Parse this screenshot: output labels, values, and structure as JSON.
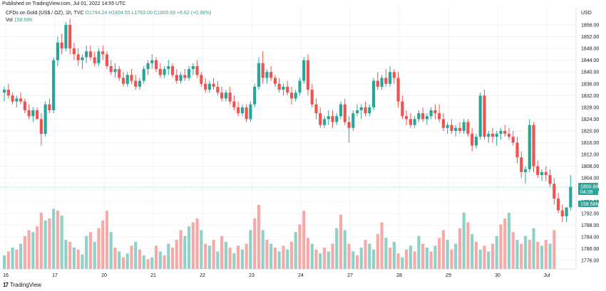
{
  "header": {
    "published": "Published on TradingView.com, Jul 01, 2022 14:55 UTC"
  },
  "legend": {
    "symbol": "CFDs on Gold (US$ / OZ), 1h, TVC",
    "open": "O1794.24",
    "high": "H1804.55",
    "low": "L1793.00",
    "close": "C1800.69",
    "change": "+6.62 (+0.38%)",
    "vol_label": "Vol",
    "vol_value": "158.58K"
  },
  "axis": {
    "currency": "USD",
    "y_ticks": [
      "1856.00",
      "1852.00",
      "1848.00",
      "1844.00",
      "1840.00",
      "1836.00",
      "1832.00",
      "1828.00",
      "1824.00",
      "1820.00",
      "1816.00",
      "1812.00",
      "1808.00",
      "1804.00",
      "1800.00",
      "1796.00",
      "1792.00",
      "1788.00",
      "1784.00",
      "1780.00",
      "1776.00"
    ],
    "x_ticks": [
      "16",
      "17",
      "20",
      "21",
      "22",
      "23",
      "24",
      "27",
      "28",
      "29",
      "30",
      "Jul"
    ]
  },
  "price_tag": {
    "price": "1800.88",
    "countdown": "04:39",
    "volume": "158.58K"
  },
  "footer": {
    "brand": "TradingView"
  },
  "colors": {
    "up": "#26a69a",
    "down": "#ef5350",
    "up_volume": "#8fd0c8",
    "down_volume": "#f7a9a7",
    "grid": "#f0f3fa",
    "price_line": "#26a69a"
  },
  "chart_data": {
    "type": "candlestick",
    "title": "CFDs on Gold (US$ / OZ), 1h, TVC",
    "ylabel": "USD",
    "ylim": [
      1774,
      1858
    ],
    "x_categories": [
      "16",
      "17",
      "20",
      "21",
      "22",
      "23",
      "24",
      "27",
      "28",
      "29",
      "30",
      "Jul"
    ],
    "last_price": 1800.88,
    "ohlc": [
      [
        1833,
        1835,
        1830,
        1834
      ],
      [
        1834,
        1836,
        1831,
        1832
      ],
      [
        1832,
        1833,
        1829,
        1830
      ],
      [
        1830,
        1832,
        1828,
        1831
      ],
      [
        1831,
        1833,
        1829,
        1830
      ],
      [
        1830,
        1831,
        1826,
        1827
      ],
      [
        1827,
        1829,
        1824,
        1825
      ],
      [
        1825,
        1828,
        1823,
        1827
      ],
      [
        1827,
        1828,
        1824,
        1824
      ],
      [
        1824,
        1826,
        1815,
        1819
      ],
      [
        1819,
        1830,
        1818,
        1829
      ],
      [
        1829,
        1831,
        1826,
        1827
      ],
      [
        1827,
        1845,
        1826,
        1844
      ],
      [
        1844,
        1852,
        1842,
        1850
      ],
      [
        1850,
        1853,
        1846,
        1848
      ],
      [
        1848,
        1857,
        1847,
        1856
      ],
      [
        1856,
        1858,
        1846,
        1848
      ],
      [
        1848,
        1850,
        1844,
        1846
      ],
      [
        1846,
        1848,
        1842,
        1844
      ],
      [
        1844,
        1846,
        1841,
        1845
      ],
      [
        1845,
        1849,
        1843,
        1847
      ],
      [
        1847,
        1849,
        1844,
        1845
      ],
      [
        1845,
        1847,
        1842,
        1843
      ],
      [
        1843,
        1848,
        1842,
        1847
      ],
      [
        1847,
        1849,
        1844,
        1846
      ],
      [
        1846,
        1847,
        1841,
        1842
      ],
      [
        1842,
        1844,
        1839,
        1840
      ],
      [
        1840,
        1843,
        1838,
        1841
      ],
      [
        1841,
        1842,
        1837,
        1838
      ],
      [
        1838,
        1840,
        1835,
        1836
      ],
      [
        1836,
        1840,
        1835,
        1839
      ],
      [
        1839,
        1841,
        1836,
        1837
      ],
      [
        1837,
        1839,
        1834,
        1835
      ],
      [
        1835,
        1838,
        1834,
        1837
      ],
      [
        1837,
        1842,
        1836,
        1841
      ],
      [
        1841,
        1844,
        1839,
        1843
      ],
      [
        1843,
        1846,
        1841,
        1844
      ],
      [
        1844,
        1845,
        1840,
        1841
      ],
      [
        1841,
        1843,
        1838,
        1839
      ],
      [
        1839,
        1842,
        1838,
        1841
      ],
      [
        1841,
        1844,
        1839,
        1842
      ],
      [
        1842,
        1843,
        1838,
        1839
      ],
      [
        1839,
        1841,
        1836,
        1837
      ],
      [
        1837,
        1840,
        1836,
        1839
      ],
      [
        1839,
        1841,
        1837,
        1838
      ],
      [
        1838,
        1842,
        1837,
        1841
      ],
      [
        1841,
        1843,
        1839,
        1842
      ],
      [
        1842,
        1844,
        1838,
        1839
      ],
      [
        1839,
        1840,
        1835,
        1836
      ],
      [
        1836,
        1838,
        1833,
        1834
      ],
      [
        1834,
        1837,
        1833,
        1836
      ],
      [
        1836,
        1838,
        1834,
        1835
      ],
      [
        1835,
        1837,
        1832,
        1833
      ],
      [
        1833,
        1835,
        1830,
        1831
      ],
      [
        1831,
        1834,
        1830,
        1833
      ],
      [
        1833,
        1835,
        1829,
        1830
      ],
      [
        1830,
        1832,
        1827,
        1828
      ],
      [
        1828,
        1830,
        1825,
        1826
      ],
      [
        1826,
        1829,
        1825,
        1828
      ],
      [
        1828,
        1829,
        1823,
        1824
      ],
      [
        1824,
        1830,
        1823,
        1829
      ],
      [
        1829,
        1836,
        1828,
        1835
      ],
      [
        1835,
        1845,
        1834,
        1843
      ],
      [
        1843,
        1847,
        1836,
        1838
      ],
      [
        1838,
        1841,
        1836,
        1840
      ],
      [
        1840,
        1842,
        1837,
        1838
      ],
      [
        1838,
        1839,
        1835,
        1836
      ],
      [
        1836,
        1838,
        1833,
        1834
      ],
      [
        1834,
        1836,
        1832,
        1835
      ],
      [
        1835,
        1837,
        1832,
        1833
      ],
      [
        1833,
        1835,
        1829,
        1831
      ],
      [
        1831,
        1834,
        1830,
        1833
      ],
      [
        1833,
        1838,
        1832,
        1837
      ],
      [
        1837,
        1845,
        1836,
        1844
      ],
      [
        1844,
        1846,
        1832,
        1834
      ],
      [
        1834,
        1836,
        1828,
        1829
      ],
      [
        1829,
        1831,
        1824,
        1826
      ],
      [
        1826,
        1828,
        1821,
        1822
      ],
      [
        1822,
        1825,
        1821,
        1824
      ],
      [
        1824,
        1827,
        1822,
        1825
      ],
      [
        1825,
        1827,
        1821,
        1823
      ],
      [
        1823,
        1826,
        1822,
        1825
      ],
      [
        1825,
        1830,
        1824,
        1829
      ],
      [
        1829,
        1831,
        1822,
        1823
      ],
      [
        1823,
        1825,
        1816,
        1821
      ],
      [
        1821,
        1827,
        1820,
        1826
      ],
      [
        1826,
        1829,
        1825,
        1827
      ],
      [
        1827,
        1829,
        1824,
        1828
      ],
      [
        1828,
        1830,
        1825,
        1826
      ],
      [
        1826,
        1829,
        1825,
        1828
      ],
      [
        1828,
        1838,
        1827,
        1837
      ],
      [
        1837,
        1840,
        1834,
        1835
      ],
      [
        1835,
        1839,
        1834,
        1838
      ],
      [
        1838,
        1841,
        1835,
        1836
      ],
      [
        1836,
        1842,
        1835,
        1840
      ],
      [
        1840,
        1841,
        1836,
        1838
      ],
      [
        1838,
        1840,
        1828,
        1830
      ],
      [
        1830,
        1832,
        1824,
        1825
      ],
      [
        1825,
        1827,
        1822,
        1824
      ],
      [
        1824,
        1826,
        1821,
        1822
      ],
      [
        1822,
        1825,
        1821,
        1824
      ],
      [
        1824,
        1827,
        1823,
        1826
      ],
      [
        1826,
        1828,
        1823,
        1824
      ],
      [
        1824,
        1826,
        1822,
        1825
      ],
      [
        1825,
        1828,
        1824,
        1827
      ],
      [
        1827,
        1829,
        1824,
        1826
      ],
      [
        1826,
        1829,
        1823,
        1824
      ],
      [
        1824,
        1826,
        1820,
        1821
      ],
      [
        1821,
        1823,
        1819,
        1822
      ],
      [
        1822,
        1824,
        1819,
        1820
      ],
      [
        1820,
        1822,
        1818,
        1821
      ],
      [
        1821,
        1823,
        1819,
        1820
      ],
      [
        1820,
        1824,
        1819,
        1823
      ],
      [
        1823,
        1824,
        1818,
        1819
      ],
      [
        1819,
        1821,
        1813,
        1815
      ],
      [
        1815,
        1819,
        1814,
        1818
      ],
      [
        1818,
        1833,
        1817,
        1832
      ],
      [
        1832,
        1834,
        1817,
        1818
      ],
      [
        1818,
        1820,
        1816,
        1819
      ],
      [
        1819,
        1821,
        1816,
        1818
      ],
      [
        1818,
        1820,
        1815,
        1819
      ],
      [
        1819,
        1821,
        1817,
        1820
      ],
      [
        1820,
        1822,
        1818,
        1819
      ],
      [
        1819,
        1821,
        1817,
        1818
      ],
      [
        1818,
        1820,
        1815,
        1816
      ],
      [
        1816,
        1818,
        1809,
        1811
      ],
      [
        1811,
        1813,
        1804,
        1806
      ],
      [
        1806,
        1808,
        1802,
        1807
      ],
      [
        1807,
        1824,
        1806,
        1822
      ],
      [
        1822,
        1823,
        1806,
        1808
      ],
      [
        1808,
        1810,
        1804,
        1805
      ],
      [
        1805,
        1807,
        1803,
        1806
      ],
      [
        1806,
        1808,
        1803,
        1805
      ],
      [
        1805,
        1807,
        1801,
        1802
      ],
      [
        1802,
        1804,
        1795,
        1797
      ],
      [
        1797,
        1799,
        1792,
        1793
      ],
      [
        1793,
        1795,
        1789,
        1791
      ],
      [
        1791,
        1794,
        1789,
        1794
      ],
      [
        1794,
        1805,
        1793,
        1801
      ]
    ],
    "volume": [
      [
        14,
        1
      ],
      [
        18,
        0
      ],
      [
        22,
        1
      ],
      [
        20,
        0
      ],
      [
        26,
        1
      ],
      [
        34,
        0
      ],
      [
        40,
        0
      ],
      [
        38,
        1
      ],
      [
        44,
        0
      ],
      [
        58,
        0
      ],
      [
        50,
        1
      ],
      [
        52,
        0
      ],
      [
        62,
        1
      ],
      [
        60,
        0
      ],
      [
        55,
        1
      ],
      [
        30,
        1
      ],
      [
        28,
        0
      ],
      [
        22,
        1
      ],
      [
        20,
        0
      ],
      [
        15,
        1
      ],
      [
        34,
        1
      ],
      [
        38,
        0
      ],
      [
        28,
        1
      ],
      [
        42,
        0
      ],
      [
        50,
        0
      ],
      [
        60,
        0
      ],
      [
        38,
        1
      ],
      [
        22,
        0
      ],
      [
        18,
        1
      ],
      [
        12,
        0
      ],
      [
        16,
        1
      ],
      [
        24,
        0
      ],
      [
        28,
        1
      ],
      [
        20,
        0
      ],
      [
        14,
        1
      ],
      [
        10,
        0
      ],
      [
        12,
        1
      ],
      [
        24,
        0
      ],
      [
        18,
        1
      ],
      [
        14,
        0
      ],
      [
        26,
        1
      ],
      [
        22,
        0
      ],
      [
        30,
        0
      ],
      [
        40,
        0
      ],
      [
        34,
        1
      ],
      [
        44,
        1
      ],
      [
        48,
        0
      ],
      [
        52,
        0
      ],
      [
        40,
        1
      ],
      [
        26,
        0
      ],
      [
        24,
        1
      ],
      [
        30,
        0
      ],
      [
        18,
        1
      ],
      [
        34,
        0
      ],
      [
        28,
        1
      ],
      [
        22,
        0
      ],
      [
        16,
        1
      ],
      [
        24,
        0
      ],
      [
        20,
        1
      ],
      [
        26,
        0
      ],
      [
        40,
        1
      ],
      [
        52,
        0
      ],
      [
        66,
        0
      ],
      [
        40,
        1
      ],
      [
        30,
        0
      ],
      [
        26,
        1
      ],
      [
        22,
        0
      ],
      [
        18,
        1
      ],
      [
        24,
        0
      ],
      [
        20,
        1
      ],
      [
        28,
        0
      ],
      [
        38,
        1
      ],
      [
        46,
        0
      ],
      [
        60,
        0
      ],
      [
        32,
        0
      ],
      [
        26,
        1
      ],
      [
        20,
        0
      ],
      [
        16,
        1
      ],
      [
        22,
        0
      ],
      [
        18,
        1
      ],
      [
        26,
        0
      ],
      [
        42,
        1
      ],
      [
        56,
        0
      ],
      [
        40,
        1
      ],
      [
        26,
        0
      ],
      [
        18,
        1
      ],
      [
        14,
        0
      ],
      [
        22,
        1
      ],
      [
        30,
        0
      ],
      [
        26,
        1
      ],
      [
        20,
        1
      ],
      [
        36,
        0
      ],
      [
        48,
        0
      ],
      [
        32,
        1
      ],
      [
        22,
        0
      ],
      [
        28,
        1
      ],
      [
        16,
        0
      ],
      [
        12,
        1
      ],
      [
        20,
        0
      ],
      [
        24,
        1
      ],
      [
        18,
        0
      ],
      [
        34,
        1
      ],
      [
        26,
        0
      ],
      [
        22,
        1
      ],
      [
        18,
        0
      ],
      [
        24,
        1
      ],
      [
        32,
        0
      ],
      [
        40,
        0
      ],
      [
        30,
        1
      ],
      [
        20,
        0
      ],
      [
        26,
        1
      ],
      [
        42,
        0
      ],
      [
        58,
        1
      ],
      [
        48,
        0
      ],
      [
        36,
        1
      ],
      [
        28,
        0
      ],
      [
        20,
        1
      ],
      [
        24,
        0
      ],
      [
        18,
        1
      ],
      [
        26,
        0
      ],
      [
        34,
        1
      ],
      [
        46,
        0
      ],
      [
        52,
        0
      ],
      [
        58,
        1
      ],
      [
        38,
        0
      ],
      [
        30,
        1
      ],
      [
        26,
        0
      ],
      [
        34,
        1
      ],
      [
        30,
        0
      ],
      [
        42,
        1
      ],
      [
        28,
        0
      ],
      [
        24,
        1
      ],
      [
        30,
        0
      ],
      [
        26,
        1
      ],
      [
        40,
        0
      ]
    ]
  }
}
